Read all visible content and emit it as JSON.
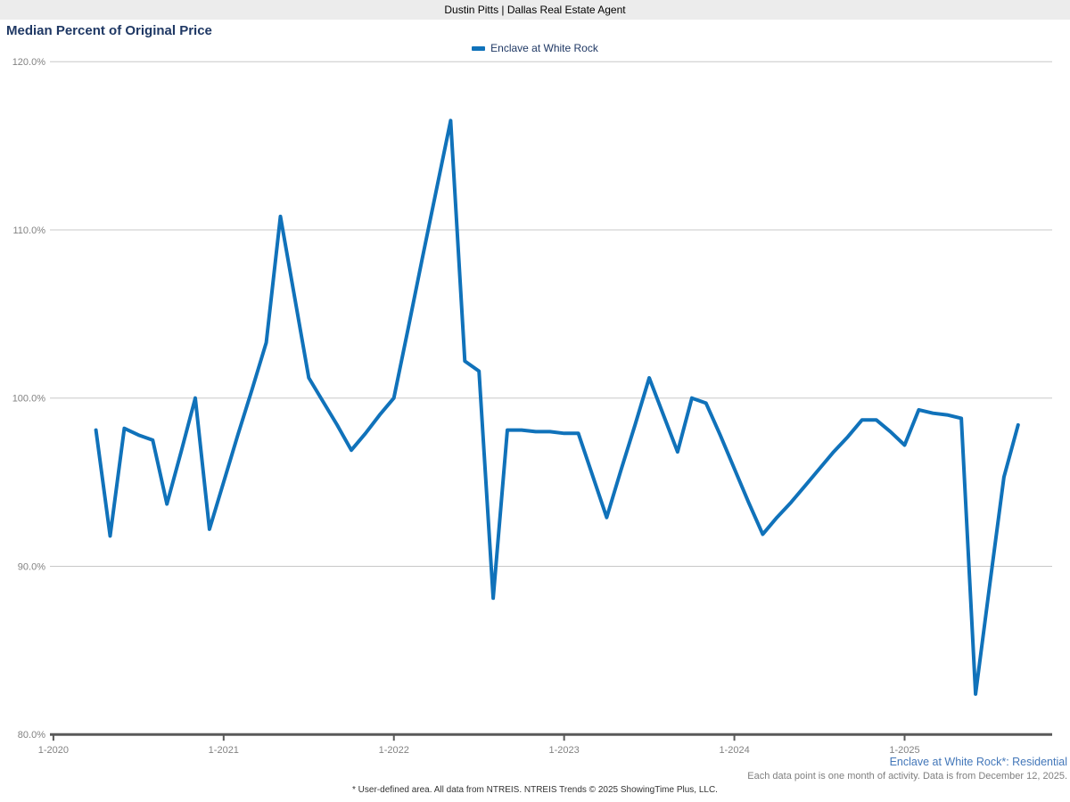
{
  "header": {
    "title": "Dustin Pitts | Dallas Real Estate Agent"
  },
  "chart_title": "Median Percent of Original Price",
  "legend": {
    "label": "Enclave at White Rock"
  },
  "footer": {
    "series_note": "Enclave at White Rock*: Residential",
    "data_note": "Each data point is one month of activity. Data is from December 12, 2025.",
    "disclaimer": "* User-defined area. All data from NTREIS. NTREIS Trends © 2025 ShowingTime Plus, LLC."
  },
  "colors": {
    "line": "#1072BA",
    "title": "#1F3864",
    "legend_text": "#1F3864",
    "header_bg": "#ECECEC",
    "header_text": "#000000",
    "gridline": "#C8C8C8",
    "axis": "#595959",
    "axis_text": "#828282",
    "footer_link": "#4377B9",
    "footer_note": "#7F7F7F",
    "disclaimer_text": "#333333"
  },
  "chart_data": {
    "type": "line",
    "title": "Median Percent of Original Price",
    "xlabel": "",
    "ylabel": "",
    "ylim": [
      80,
      120
    ],
    "grid": "horizontal",
    "legend_position": "top-center",
    "yticks": [
      "120.0%",
      "110.0%",
      "100.0%",
      "90.0%",
      "80.0%"
    ],
    "ytick_values": [
      120,
      110,
      100,
      90,
      80
    ],
    "xticks": [
      "1-2020",
      "1-2021",
      "1-2022",
      "1-2023",
      "1-2024",
      "1-2025"
    ],
    "series": [
      {
        "name": "Enclave at White Rock",
        "x": [
          "2020-04",
          "2020-05",
          "2020-06",
          "2020-07",
          "2020-08",
          "2020-09",
          "2020-10",
          "2020-11",
          "2020-12",
          "2021-01",
          "2021-02",
          "2021-03",
          "2021-04",
          "2021-05",
          "2021-06",
          "2021-07",
          "2021-08",
          "2021-09",
          "2021-10",
          "2021-11",
          "2021-12",
          "2022-01",
          "2022-02",
          "2022-03",
          "2022-04",
          "2022-05",
          "2022-06",
          "2022-07",
          "2022-08",
          "2022-09",
          "2022-10",
          "2022-11",
          "2022-12",
          "2023-01",
          "2023-02",
          "2023-03",
          "2023-04",
          "2023-05",
          "2023-06",
          "2023-07",
          "2023-08",
          "2023-09",
          "2023-10",
          "2023-11",
          "2023-12",
          "2024-01",
          "2024-02",
          "2024-03",
          "2024-04",
          "2024-05",
          "2024-06",
          "2024-07",
          "2024-08",
          "2024-09",
          "2024-10",
          "2024-11",
          "2024-12",
          "2025-01",
          "2025-02",
          "2025-03",
          "2025-04",
          "2025-05",
          "2025-06",
          "2025-07",
          "2025-08",
          "2025-09"
        ],
        "values": [
          98.1,
          91.8,
          98.2,
          97.8,
          97.5,
          93.7,
          96.8,
          100.0,
          92.2,
          95.0,
          97.8,
          100.5,
          103.3,
          110.8,
          106.0,
          101.2,
          99.8,
          98.4,
          96.9,
          97.9,
          99.0,
          100.0,
          104.1,
          108.3,
          112.4,
          116.5,
          102.2,
          101.6,
          88.1,
          98.1,
          98.1,
          98.0,
          98.0,
          97.9,
          97.9,
          95.4,
          92.9,
          95.7,
          98.4,
          101.2,
          99.0,
          96.8,
          100.0,
          99.7,
          97.8,
          95.8,
          93.8,
          91.9,
          92.9,
          93.8,
          94.8,
          95.8,
          96.8,
          97.7,
          98.7,
          98.7,
          98.0,
          97.2,
          99.3,
          99.1,
          99.0,
          98.8,
          82.4,
          88.9,
          95.3,
          98.4
        ]
      }
    ]
  }
}
